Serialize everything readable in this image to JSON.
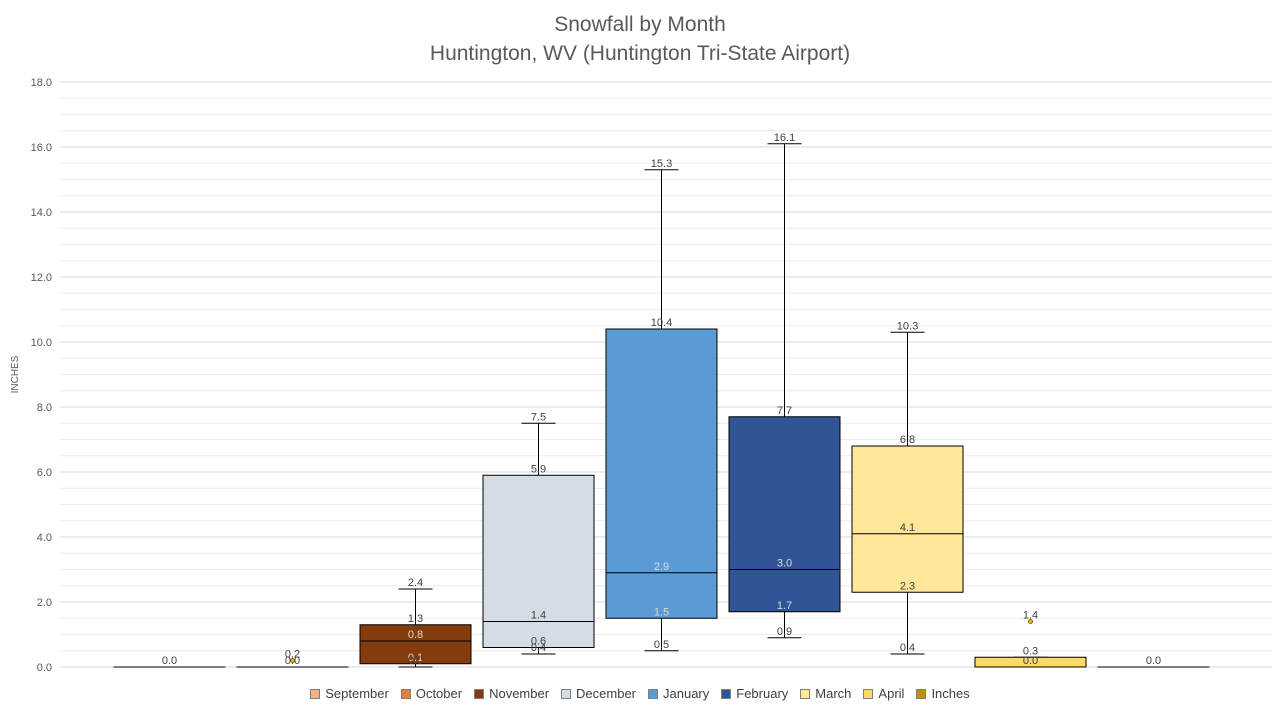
{
  "chart_data": {
    "type": "box",
    "title": "Snowfall by Month",
    "subtitle": "Huntington, WV (Huntington Tri-State Airport)",
    "ylabel": "INCHES",
    "ylim": [
      0,
      18
    ],
    "y_ticks": [
      "0.0",
      "2.0",
      "4.0",
      "6.0",
      "8.0",
      "10.0",
      "12.0",
      "14.0",
      "16.0",
      "18.0"
    ],
    "grid": true,
    "legend_position": "bottom",
    "series": [
      {
        "name": "September",
        "color": "#f4b183",
        "min": 0.0,
        "q1": 0.0,
        "median": 0.0,
        "q3": 0.0,
        "max": 0.0,
        "labels": [
          "0.0"
        ]
      },
      {
        "name": "October",
        "color": "#ed7d31",
        "min": 0.0,
        "q1": 0.0,
        "median": 0.0,
        "q3": 0.0,
        "max": 0.0,
        "outliers": [
          0.2
        ],
        "labels": [
          "0.2",
          "0.0"
        ]
      },
      {
        "name": "November",
        "color": "#843c0c",
        "min": 0.0,
        "q1": 0.1,
        "median": 0.8,
        "q3": 1.3,
        "max": 2.4,
        "labels": [
          "2.4",
          "1.3",
          "0.8",
          "0.1",
          "0.0"
        ]
      },
      {
        "name": "December",
        "color": "#d6dce5",
        "min": 0.4,
        "q1": 0.6,
        "median": 1.4,
        "q3": 5.9,
        "max": 7.5,
        "labels": [
          "7.5",
          "5.9",
          "1.4",
          "0.6",
          "0.4"
        ]
      },
      {
        "name": "January",
        "color": "#5b9bd5",
        "min": 0.5,
        "q1": 1.5,
        "median": 2.9,
        "q3": 10.4,
        "max": 15.3,
        "labels": [
          "15.3",
          "10.4",
          "2.9",
          "1.5",
          "0.5"
        ]
      },
      {
        "name": "February",
        "color": "#2f5597",
        "min": 0.9,
        "q1": 1.7,
        "median": 3.0,
        "q3": 7.7,
        "max": 16.1,
        "labels": [
          "16.1",
          "7.7",
          "3.0",
          "1.7",
          "0.9"
        ]
      },
      {
        "name": "March",
        "color": "#ffe699",
        "min": 0.4,
        "q1": 2.3,
        "median": 4.1,
        "q3": 6.8,
        "max": 10.3,
        "labels": [
          "10.3",
          "6.8",
          "4.1",
          "2.3",
          "0.4"
        ]
      },
      {
        "name": "April",
        "color": "#ffd966",
        "min": 0.0,
        "q1": 0.0,
        "median": 0.0,
        "q3": 0.3,
        "max": 0.3,
        "outliers": [
          1.4
        ],
        "labels": [
          "1.4",
          "0.3",
          "0.0"
        ]
      },
      {
        "name": "Inches",
        "color": "#bf9000",
        "min": 0.0,
        "q1": 0.0,
        "median": 0.0,
        "q3": 0.0,
        "max": 0.0,
        "labels": [
          "0.0"
        ]
      }
    ]
  }
}
